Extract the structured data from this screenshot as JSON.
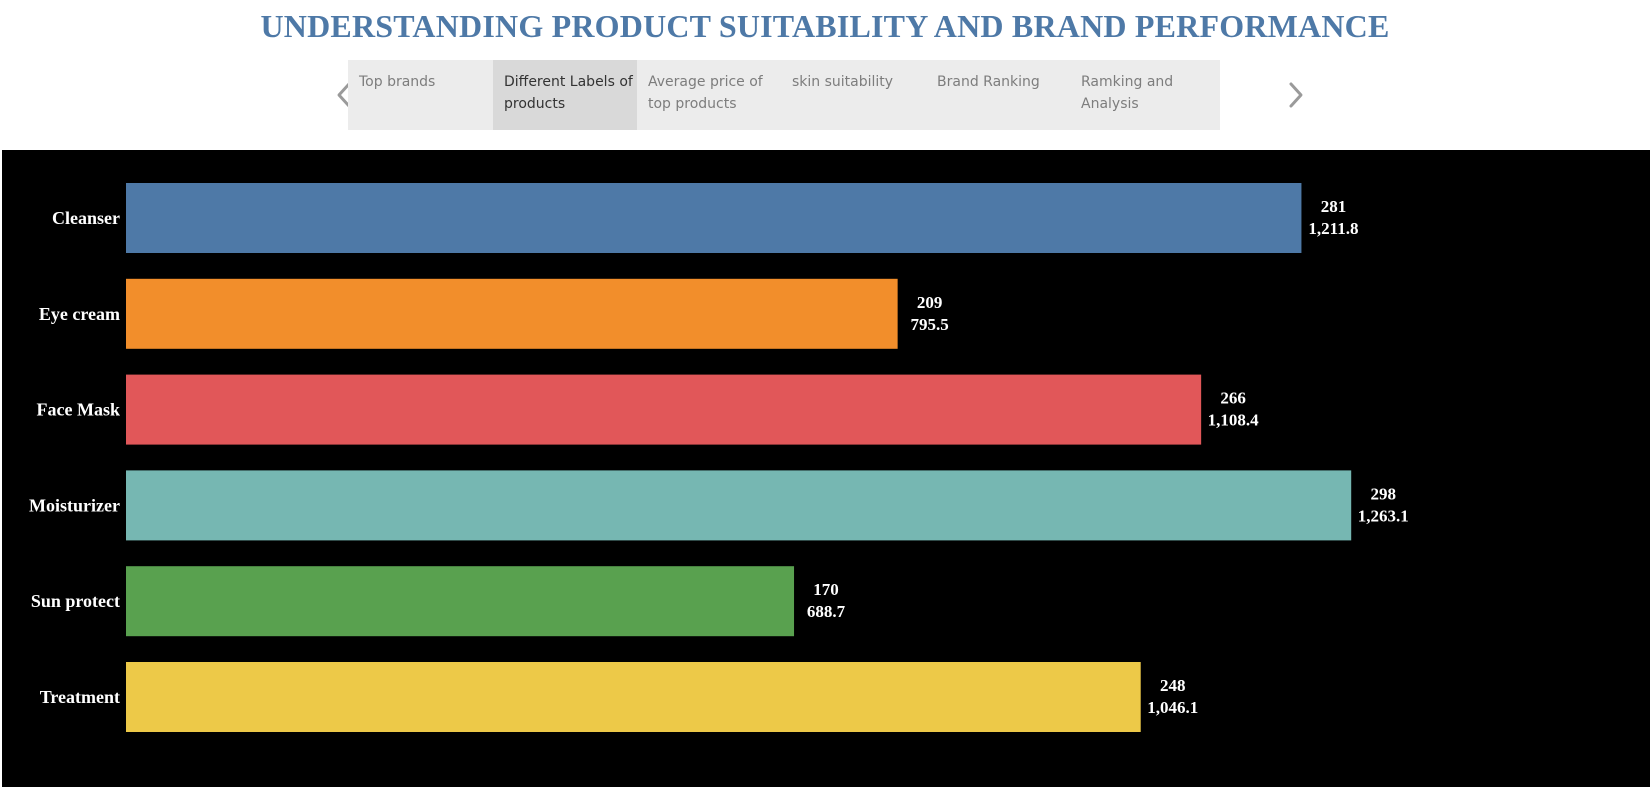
{
  "page": {
    "title": "UNDERSTANDING PRODUCT SUITABILITY AND BRAND PERFORMANCE"
  },
  "story_points": {
    "tabs": [
      {
        "label": "Top brands",
        "active": false
      },
      {
        "label": "Different Labels of products",
        "active": true
      },
      {
        "label": "Average price of top products",
        "active": false
      },
      {
        "label": "skin suitability",
        "active": false
      },
      {
        "label": "Brand Ranking",
        "active": false
      },
      {
        "label": "Ramking and Analysis",
        "active": false
      }
    ],
    "prev_icon": "chevron-left-icon",
    "next_icon": "chevron-right-icon"
  },
  "chart_data": {
    "type": "bar",
    "orientation": "horizontal",
    "categories": [
      "Cleanser",
      "Eye cream",
      "Face Mask",
      "Moisturizer",
      "Sun protect",
      "Treatment"
    ],
    "series": [
      {
        "values": [
          281,
          209,
          266,
          298,
          170,
          248
        ]
      },
      {
        "values": [
          1211.8,
          795.5,
          1108.4,
          1263.1,
          688.7,
          1046.1
        ]
      }
    ],
    "value_labels": [
      [
        "281",
        "1,211.8"
      ],
      [
        "209",
        "795.5"
      ],
      [
        "266",
        "1,108.4"
      ],
      [
        "298",
        "1,263.1"
      ],
      [
        "170",
        "688.7"
      ],
      [
        "248",
        "1,046.1"
      ]
    ],
    "colors": [
      "#4e79a7",
      "#f28e2b",
      "#e15759",
      "#76b7b2",
      "#59a14f",
      "#edc948"
    ],
    "background": "#000000",
    "grid": false,
    "legend": "none"
  }
}
